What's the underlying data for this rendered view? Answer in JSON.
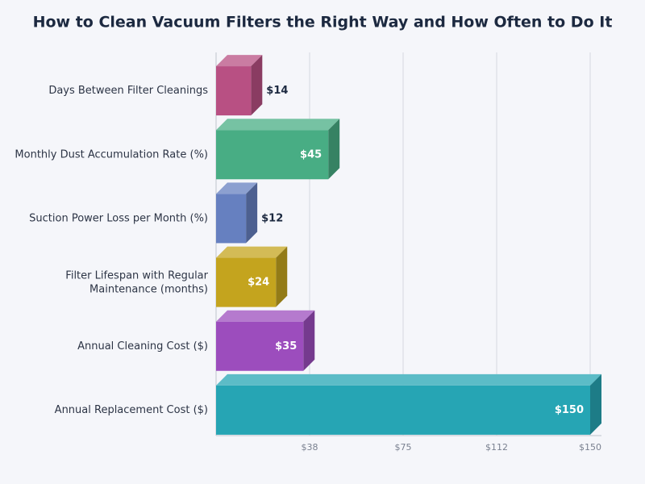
{
  "chart_data": {
    "type": "bar",
    "orientation": "horizontal",
    "title": "How to Clean Vacuum Filters the Right Way and How Often to Do It",
    "categories": [
      "Days Between Filter Cleanings",
      "Monthly Dust Accumulation Rate (%)",
      "Suction Power Loss per Month (%)",
      "Filter Lifespan with Regular Maintenance (months)",
      "Annual Cleaning Cost ($)",
      "Annual Replacement Cost ($)"
    ],
    "values": [
      14,
      45,
      12,
      24,
      35,
      150
    ],
    "value_labels": [
      "$14",
      "$45",
      "$12",
      "$24",
      "$35",
      "$150"
    ],
    "colors": [
      "#b85083",
      "#48ad84",
      "#6680c0",
      "#c4a41e",
      "#9c4dbd",
      "#26a5b4"
    ],
    "xlim": [
      0,
      150
    ],
    "xticks": [
      {
        "value": 37.5,
        "label": "$38"
      },
      {
        "value": 75,
        "label": "$75"
      },
      {
        "value": 112.5,
        "label": "$112"
      },
      {
        "value": 150,
        "label": "$150"
      }
    ],
    "grid": true
  }
}
